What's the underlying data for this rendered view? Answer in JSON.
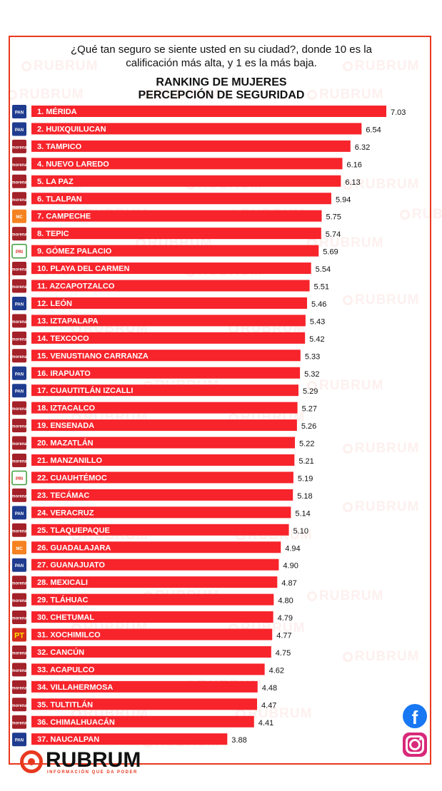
{
  "question": {
    "line1": "¿Qué tan seguro se siente usted en su ciudad?, donde 10 es la",
    "line2": "calificación más alta, y  1 es la más baja."
  },
  "watermark": "RUBRUM",
  "logo": {
    "word": "RUBRUM",
    "tagline": "INFORMACIÓN QUE DA PODER"
  },
  "social": {
    "facebook": "f",
    "facebook_icon": "facebook-icon",
    "instagram_icon": "instagram-icon"
  },
  "colors": {
    "bar": "#f7242b",
    "frame": "#e8391f",
    "pan": "#1f3c8f",
    "morena": "#a32128",
    "mc": "#f58220",
    "pri": "#ffffff",
    "pt": "#d52b1e"
  },
  "party_badges": {
    "PAN": {
      "text": "PAN",
      "bg": "#1f3c8f",
      "fg": "#ffffff"
    },
    "MORENA": {
      "text": "morena",
      "bg": "#a32128",
      "fg": "#ffffff"
    },
    "MC": {
      "text": "MC",
      "bg": "#f58220",
      "fg": "#ffffff"
    },
    "PRI": {
      "text": "PRI",
      "bg": "#ffffff",
      "fg": "#d52b1e"
    },
    "PT": {
      "text": "PT",
      "bg": "#d52b1e",
      "fg": "#ffe000"
    }
  },
  "chart_data": {
    "type": "bar",
    "orientation": "horizontal",
    "title": "RANKING DE MUJERES\nPERCEPCIÓN DE SEGURIDAD",
    "title_line1": "RANKING DE MUJERES",
    "title_line2": "PERCEPCIÓN DE SEGURIDAD",
    "xlim": [
      0,
      7.03
    ],
    "categories": [
      "1. MÉRIDA",
      "2. HUIXQUILUCAN",
      "3. TAMPICO",
      "4. NUEVO LAREDO",
      "5. LA PAZ",
      "6. TLALPAN",
      "7. CAMPECHE",
      "8. TEPIC",
      "9. GÓMEZ PALACIO",
      "10. PLAYA DEL CARMEN",
      "11. AZCAPOTZALCO",
      "12. LEÓN",
      "13. IZTAPALAPA",
      "14. TEXCOCO",
      "15. VENUSTIANO CARRANZA",
      "16. IRAPUATO",
      "17. CUAUTITLÁN IZCALLI",
      "18. IZTACALCO",
      "19. ENSENADA",
      "20. MAZATLÁN",
      "21. MANZANILLO",
      "22. CUAUHTÉMOC",
      "23. TECÁMAC",
      "24. VERACRUZ",
      "25. TLAQUEPAQUE",
      "26. GUADALAJARA",
      "27. GUANAJUATO",
      "28. MEXICALI",
      "29. TLÁHUAC",
      "30. CHETUMAL",
      "31. XOCHIMILCO",
      "32. CANCÚN",
      "33. ACAPULCO",
      "34. VILLAHERMOSA",
      "35. TULTITLÁN",
      "36. CHIMALHUACÁN",
      "37. NAUCALPAN"
    ],
    "values": [
      7.03,
      6.54,
      6.32,
      6.16,
      6.13,
      5.94,
      5.75,
      5.74,
      5.69,
      5.54,
      5.51,
      5.46,
      5.43,
      5.42,
      5.33,
      5.32,
      5.29,
      5.27,
      5.26,
      5.22,
      5.21,
      5.19,
      5.18,
      5.14,
      5.1,
      4.94,
      4.9,
      4.87,
      4.8,
      4.79,
      4.77,
      4.75,
      4.62,
      4.48,
      4.47,
      4.41,
      3.88
    ],
    "value_labels": [
      "7.03",
      "6.54",
      "6.32",
      "6.16",
      "6.13",
      "5.94",
      "5.75",
      "5.74",
      "5.69",
      "5.54",
      "5.51",
      "5.46",
      "5.43",
      "5.42",
      "5.33",
      "5.32",
      "5.29",
      "5.27",
      "5.26",
      "5.22",
      "5.21",
      "5.19",
      "5.18",
      "5.14",
      "5.10",
      "4.94",
      "4.90",
      "4.87",
      "4.80",
      "4.79",
      "4.77",
      "4.75",
      "4.62",
      "4.48",
      "4.47",
      "4.41",
      "3.88"
    ],
    "party": [
      "PAN",
      "PAN",
      "MORENA",
      "MORENA",
      "MORENA",
      "MORENA",
      "MC",
      "MORENA",
      "PRI",
      "MORENA",
      "MORENA",
      "PAN",
      "MORENA",
      "MORENA",
      "MORENA",
      "PAN",
      "PAN",
      "MORENA",
      "MORENA",
      "MORENA",
      "MORENA",
      "PRI",
      "MORENA",
      "PAN",
      "MORENA",
      "MC",
      "PAN",
      "MORENA",
      "MORENA",
      "MORENA",
      "PT",
      "MORENA",
      "MORENA",
      "MORENA",
      "MORENA",
      "MORENA",
      "PAN"
    ],
    "grid": false,
    "legend": "none"
  }
}
